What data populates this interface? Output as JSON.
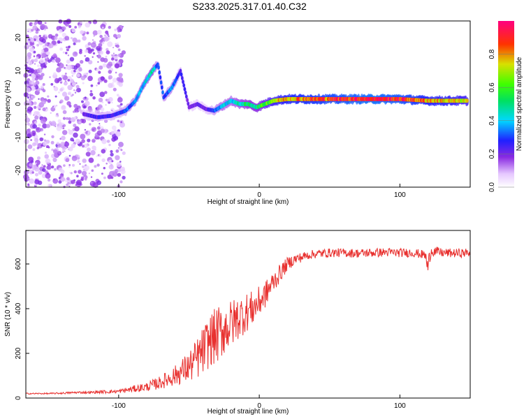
{
  "title": "S233.2025.317.01.40.C32",
  "chart_data": [
    {
      "type": "heatmap",
      "name": "spectrogram",
      "xlabel": "Height of straight line (km)",
      "ylabel": "Frequency (Hz)",
      "xlim": [
        -166,
        150
      ],
      "ylim": [
        -25,
        25
      ],
      "xticks": [
        -100,
        0,
        100
      ],
      "xtick_labels": [
        "-100",
        "0",
        "100"
      ],
      "yticks": [
        -20,
        -10,
        0,
        10,
        20
      ],
      "ytick_labels": [
        "-20",
        "-10",
        "0",
        "10",
        "20"
      ],
      "signal_track": {
        "x": [
          -125,
          -115,
          -105,
          -95,
          -88,
          -82,
          -76,
          -72,
          -68,
          -62,
          -56,
          -50,
          -44,
          -38,
          -32,
          -26,
          -20,
          -14,
          -8,
          -2,
          4,
          10,
          20,
          40,
          60,
          80,
          100,
          120,
          148
        ],
        "y": [
          -3,
          -4,
          -3.5,
          -2,
          1,
          6,
          10,
          12,
          2,
          5,
          10,
          -1,
          0,
          -1.5,
          -2,
          -0.5,
          1,
          0,
          0,
          -1,
          0,
          1,
          1.5,
          1.5,
          1.5,
          1.5,
          1.5,
          1,
          1
        ],
        "amplitude": [
          0.2,
          0.25,
          0.25,
          0.3,
          0.35,
          0.4,
          0.45,
          0.3,
          0.3,
          0.35,
          0.25,
          0.2,
          0.2,
          0.2,
          0.3,
          0.4,
          0.4,
          0.45,
          0.5,
          0.5,
          0.6,
          0.7,
          0.8,
          0.85,
          0.9,
          0.95,
          0.9,
          0.8,
          0.7
        ]
      },
      "colorbar": {
        "label": "Normalized spectral amplitude",
        "ticks": [
          0.0,
          0.2,
          0.4,
          0.6,
          0.8
        ],
        "tick_labels": [
          "0.0",
          "0.2",
          "0.4",
          "0.6",
          "0.8"
        ],
        "range": [
          0,
          1
        ]
      }
    },
    {
      "type": "line",
      "name": "snr",
      "xlabel": "Height of straight line (km)",
      "ylabel": "SNR (10 * v/v)",
      "xlim": [
        -166,
        150
      ],
      "ylim": [
        0,
        750
      ],
      "xticks": [
        -100,
        0,
        100
      ],
      "xtick_labels": [
        "-100",
        "0",
        "100"
      ],
      "yticks": [
        0,
        200,
        400,
        600
      ],
      "ytick_labels": [
        "0",
        "200",
        "400",
        "600"
      ],
      "color": "#e8312f",
      "series": [
        {
          "name": "SNR",
          "x": [
            -166,
            -150,
            -140,
            -130,
            -120,
            -110,
            -100,
            -90,
            -80,
            -70,
            -60,
            -50,
            -45,
            -40,
            -35,
            -30,
            -25,
            -20,
            -15,
            -10,
            -5,
            0,
            5,
            10,
            15,
            20,
            25,
            30,
            35,
            40,
            50,
            60,
            70,
            80,
            90,
            100,
            110,
            118,
            120,
            122,
            130,
            140,
            150
          ],
          "y": [
            20,
            20,
            22,
            25,
            25,
            28,
            30,
            40,
            50,
            70,
            100,
            140,
            170,
            210,
            260,
            280,
            310,
            330,
            360,
            380,
            400,
            430,
            470,
            520,
            560,
            600,
            620,
            630,
            640,
            645,
            650,
            650,
            648,
            650,
            652,
            650,
            650,
            640,
            580,
            660,
            650,
            648,
            650
          ],
          "noise": [
            3,
            3,
            4,
            5,
            5,
            8,
            8,
            15,
            20,
            30,
            45,
            70,
            90,
            110,
            120,
            130,
            120,
            110,
            100,
            90,
            80,
            70,
            60,
            50,
            40,
            30,
            25,
            22,
            20,
            20,
            20,
            20,
            20,
            20,
            20,
            20,
            20,
            20,
            60,
            25,
            20,
            20,
            20
          ]
        }
      ]
    }
  ]
}
